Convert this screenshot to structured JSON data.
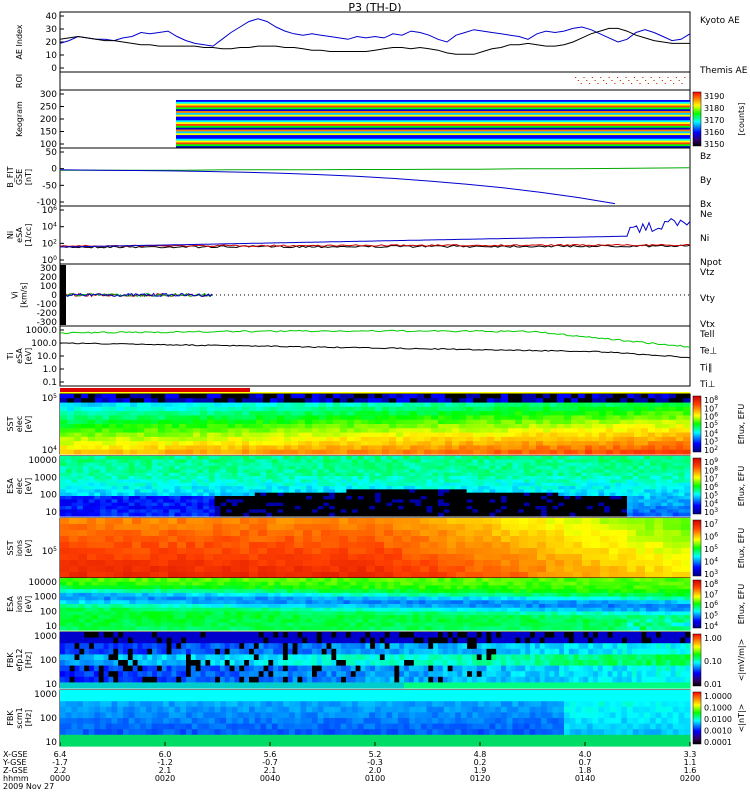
{
  "title": "P3 (TH-D)",
  "chart_data": {
    "type": "line",
    "x_time_ticks": [
      "0000",
      "0020",
      "0040",
      "0100",
      "0120",
      "0140",
      "0200"
    ],
    "footer": {
      "labels": [
        "X-GSE",
        "Y-GSE",
        "Z-GSE",
        "hhmm",
        "2009 Nov 27"
      ],
      "x_gse": [
        "6.4",
        "6.0",
        "5.6",
        "5.2",
        "4.8",
        "4.0",
        "3.3"
      ],
      "y_gse": [
        "-1.7",
        "-1.2",
        "-0.7",
        "-0.3",
        "0.2",
        "0.7",
        "1.1"
      ],
      "z_gse": [
        "2.2",
        "2.1",
        "2.1",
        "2.0",
        "1.9",
        "1.8",
        "1.6"
      ]
    },
    "panels": [
      {
        "id": "ae",
        "ylabel": "AE Index",
        "yticks": [
          "40",
          "30",
          "20",
          "10",
          "0"
        ],
        "legend": [
          {
            "name": "Kyoto AE",
            "color": "#0000cc"
          },
          {
            "name": "Themis AE",
            "color": "#000000"
          }
        ],
        "series": [
          {
            "name": "Kyoto AE",
            "color": "#0000cc",
            "values": [
              19,
              21,
              24,
              23,
              22,
              22,
              21,
              23,
              24,
              27,
              26,
              27,
              28,
              24,
              21,
              19,
              18,
              17,
              22,
              27,
              31,
              35,
              37,
              35,
              31,
              28,
              26,
              25,
              26,
              25,
              24,
              23,
              22,
              24,
              23,
              24,
              23,
              26,
              25,
              28,
              27,
              25,
              22,
              20,
              25,
              27,
              29,
              28,
              27,
              26,
              25,
              24,
              22,
              26,
              28,
              27,
              28,
              30,
              31,
              29,
              26,
              23,
              20,
              22,
              27,
              29,
              27,
              24,
              21,
              22,
              26
            ]
          },
          {
            "name": "Themis AE",
            "color": "#000000",
            "values": [
              22,
              23,
              24,
              23,
              22,
              21,
              21,
              20,
              19,
              18,
              18,
              17,
              17,
              17,
              17,
              17,
              16,
              16,
              15,
              15,
              16,
              16,
              17,
              17,
              17,
              16,
              16,
              15,
              14,
              14,
              13,
              13,
              13,
              13,
              13,
              14,
              15,
              16,
              16,
              15,
              16,
              15,
              14,
              12,
              11,
              11,
              11,
              13,
              15,
              16,
              18,
              18,
              19,
              18,
              17,
              17,
              18,
              20,
              23,
              26,
              28,
              30,
              30,
              28,
              25,
              23,
              21,
              20,
              19,
              19,
              19
            ]
          }
        ]
      },
      {
        "id": "roi",
        "ylabel": "ROI"
      },
      {
        "id": "keogram",
        "ylabel": "Keogram",
        "yticks": [
          "300",
          "250",
          "200",
          "150",
          "100"
        ],
        "colorbar_ticks": [
          "3190",
          "3180",
          "3170",
          "3160",
          "3150"
        ],
        "colorbar_label": "[counts]"
      },
      {
        "id": "bfit",
        "ylabel": "B_FIT",
        "ylabel2": "GSE",
        "units": "[nT]",
        "yticks": [
          "50",
          "0",
          "-50",
          "-100"
        ],
        "legend": [
          {
            "name": "Bz",
            "color": "#cc0000"
          },
          {
            "name": "By",
            "color": "#00aa00"
          },
          {
            "name": "Bx",
            "color": "#0000cc"
          }
        ],
        "series": [
          {
            "name": "Bx",
            "color": "#0000cc",
            "values": [
              -4,
              -5,
              -6,
              -7,
              -9,
              -11,
              -14,
              -18,
              -23,
              -29,
              -37,
              -46,
              -57,
              -70,
              -85,
              -103
            ]
          },
          {
            "name": "By",
            "color": "#00aa00",
            "values": [
              -5,
              -5,
              -5,
              -5,
              -4,
              -4,
              -4,
              -3,
              -3,
              -2,
              -2,
              -1,
              -1,
              0,
              1,
              2
            ]
          }
        ]
      },
      {
        "id": "ni",
        "ylabel": "Ni",
        "ylabel2": "eSA",
        "units": "[1/cc]",
        "yticks": [
          "10^6",
          "10^4",
          "10^2",
          "10^0"
        ],
        "legend": [
          {
            "name": "Ne",
            "color": "#cc0000"
          },
          {
            "name": "Ni",
            "color": "#000000"
          },
          {
            "name": "Npot",
            "color": "#0000cc"
          }
        ]
      },
      {
        "id": "vi",
        "ylabel": "Vi",
        "units": "[km/s]",
        "yticks": [
          "300",
          "200",
          "100",
          "0",
          "-100",
          "-200",
          "-300"
        ],
        "legend": [
          {
            "name": "Vtz",
            "color": "#cc0000"
          },
          {
            "name": "Vty",
            "color": "#00aa00"
          },
          {
            "name": "Vtx",
            "color": "#0000cc"
          }
        ]
      },
      {
        "id": "ti",
        "ylabel": "Ti",
        "ylabel2": "eSA",
        "units": "[eV]",
        "yticks": [
          "1000.0",
          "100.0",
          "10.0",
          "1.0",
          "0.1"
        ],
        "legend": [
          {
            "name": "Tell",
            "color": "#000000"
          },
          {
            "name": "Te⊥",
            "color": "#cc0000"
          },
          {
            "name": "Ti∥",
            "color": "#00aa00"
          },
          {
            "name": "Ti⊥",
            "color": "#0000cc"
          }
        ]
      },
      {
        "id": "sst_e",
        "ylabel": "SST",
        "ylabel2": "elec",
        "units": "[eV]",
        "yticks": [
          "10^5",
          "10^4"
        ],
        "colorbar_label": "Eflux, EFU",
        "colorbar_ticks": [
          "10^8",
          "10^7",
          "10^6",
          "10^5",
          "10^4",
          "10^3",
          "10^2"
        ]
      },
      {
        "id": "esa_e",
        "ylabel": "ESA",
        "ylabel2": "elec",
        "units": "[eV]",
        "yticks": [
          "10000",
          "1000",
          "100",
          "10"
        ],
        "colorbar_label": "Eflux, EFU",
        "colorbar_ticks": [
          "10^9",
          "10^8",
          "10^7",
          "10^6",
          "10^5",
          "10^4",
          "10^3"
        ]
      },
      {
        "id": "sst_i",
        "ylabel": "SST",
        "ylabel2": "ions",
        "units": "[eV]",
        "yticks": [
          "10^5"
        ],
        "colorbar_label": "Eflux, EFU",
        "colorbar_ticks": [
          "10^7",
          "10^6",
          "10^5",
          "10^4",
          "10^3"
        ]
      },
      {
        "id": "esa_i",
        "ylabel": "ESA",
        "ylabel2": "ions",
        "units": "[eV]",
        "yticks": [
          "10000",
          "1000",
          "100",
          "10"
        ],
        "colorbar_label": "Eflux, EFU",
        "colorbar_ticks": [
          "10^8",
          "10^7",
          "10^6",
          "10^5",
          "10^4"
        ]
      },
      {
        "id": "fbk_e",
        "ylabel": "FBK",
        "ylabel2": "efp12",
        "units": "[Hz]",
        "yticks": [
          "1000",
          "100",
          "10"
        ],
        "colorbar_label": "<|mV/m|>",
        "colorbar_ticks": [
          "1.00",
          "0.10",
          "0.01"
        ]
      },
      {
        "id": "fbk_b",
        "ylabel": "FBK",
        "ylabel2": "scm1",
        "units": "[Hz]",
        "yticks": [
          "1000",
          "100",
          "10"
        ],
        "colorbar_label": "<|nT|>",
        "colorbar_ticks": [
          "1.0000",
          "0.1000",
          "0.0100",
          "0.0010",
          "0.0001"
        ]
      }
    ]
  }
}
